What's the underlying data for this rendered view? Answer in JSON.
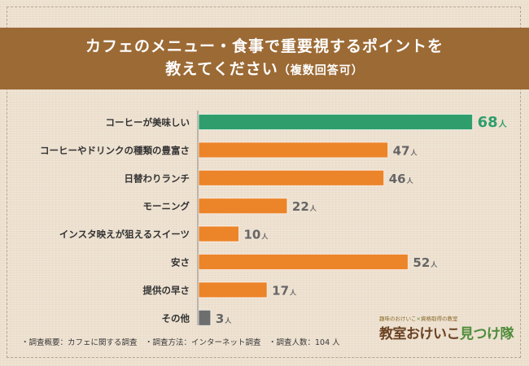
{
  "header": {
    "title_line1": "カフェのメニュー・食事で重要視するポイントを",
    "title_line2": "教えてください",
    "title_note": "（複数回答可）"
  },
  "colors": {
    "highlight": "#2f9e6c",
    "bar": "#ec8429",
    "minor": "#6e6e6e",
    "header_bg": "#9c6a35"
  },
  "chart_data": {
    "type": "bar",
    "orientation": "horizontal",
    "unit": "人",
    "categories": [
      "コーヒーが美味しい",
      "コーヒーやドリンクの種類の豊富さ",
      "日替わりランチ",
      "モーニング",
      "インスタ映えが狙えるスイーツ",
      "安さ",
      "提供の早さ",
      "その他"
    ],
    "values": [
      68,
      47,
      46,
      22,
      10,
      52,
      17,
      3
    ],
    "highlight_index": 0,
    "minor_index": 7
  },
  "footer": {
    "survey_note": "・調査概要：カフェに関する調査　・調査方法：インターネット調査　・調査人数：104 人"
  },
  "logo": {
    "tag_left": "趣味のおけいこ",
    "tag_sep": "×",
    "tag_right": "資格取得の教室",
    "name_main": "教室おけいこ",
    "name_accent": "見つけ隊"
  }
}
